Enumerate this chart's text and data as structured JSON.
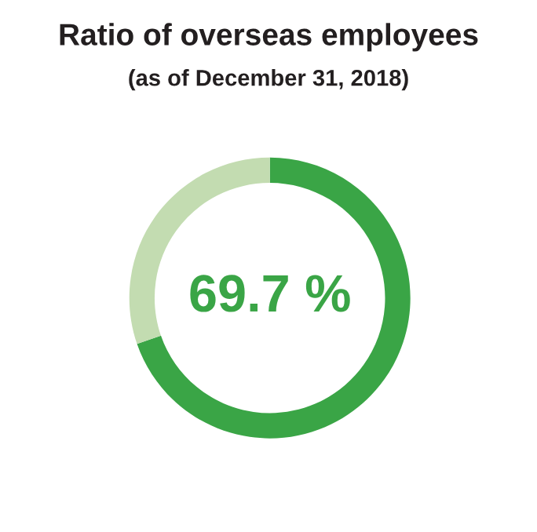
{
  "chart_data": {
    "type": "donut",
    "title": "Ratio of overseas employees",
    "subtitle": "(as of December 31, 2018)",
    "categories": [
      null,
      null
    ],
    "values": [
      69.7,
      30.3
    ],
    "colors": [
      "#3aa546",
      "#c3dcb1"
    ],
    "annotations": [
      "69.7 %"
    ]
  }
}
